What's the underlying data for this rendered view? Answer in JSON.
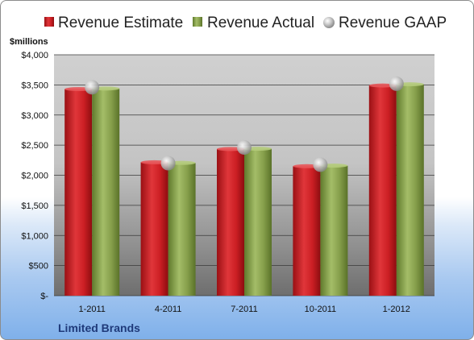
{
  "chart_data": {
    "type": "bar",
    "categories": [
      "1-2011",
      "4-2011",
      "7-2011",
      "10-2011",
      "1-2012"
    ],
    "series": [
      {
        "name": "Revenue Estimate",
        "values": [
          3430,
          2215,
          2435,
          2150,
          3490
        ],
        "color": "#cc1f24"
      },
      {
        "name": "Revenue Actual",
        "values": [
          3440,
          2205,
          2440,
          2160,
          3510
        ],
        "color": "#7f9b43"
      }
    ],
    "overlay_series": {
      "name": "Revenue GAAP",
      "values": [
        3460,
        2200,
        2460,
        2175,
        3520
      ],
      "marker": "sphere",
      "color": "#a8a8a8"
    },
    "ylabel": "$millions",
    "ylim": [
      0,
      4000
    ],
    "yticks": [
      {
        "value": 0,
        "label": "$-"
      },
      {
        "value": 500,
        "label": "$500"
      },
      {
        "value": 1000,
        "label": "$1,000"
      },
      {
        "value": 1500,
        "label": "$1,500"
      },
      {
        "value": 2000,
        "label": "$2,000"
      },
      {
        "value": 2500,
        "label": "$2,500"
      },
      {
        "value": 3000,
        "label": "$3,000"
      },
      {
        "value": 3500,
        "label": "$3,500"
      },
      {
        "value": 4000,
        "label": "$4,000"
      }
    ],
    "grid": true,
    "legend_position": "top",
    "footer_label": "Limited Brands"
  }
}
